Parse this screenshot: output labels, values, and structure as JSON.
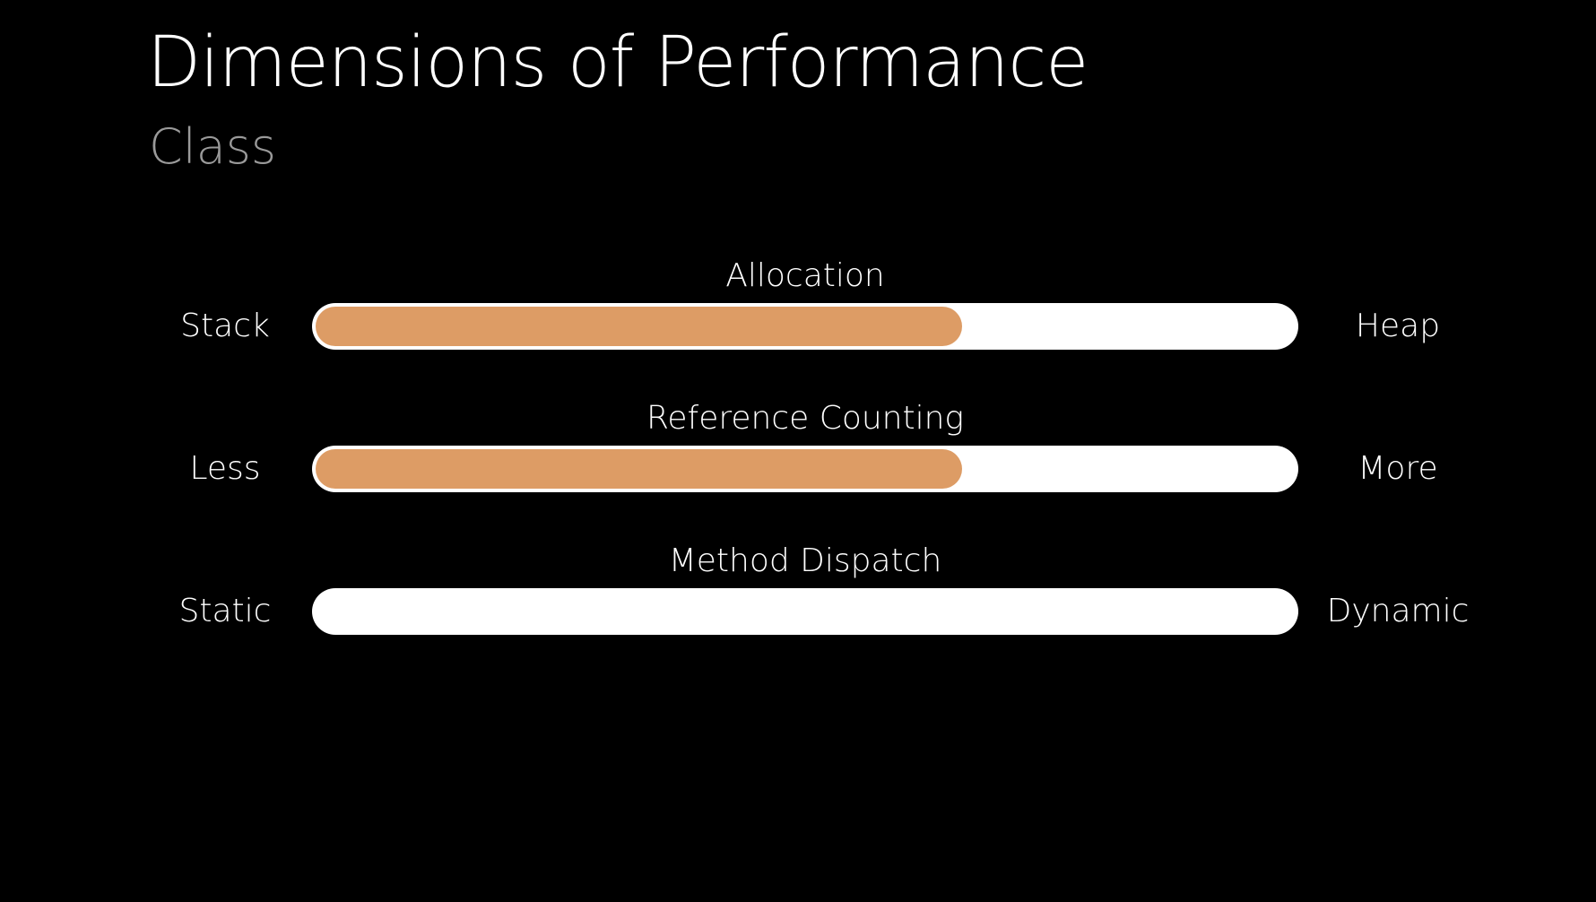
{
  "slide": {
    "title": "Dimensions of Performance",
    "subtitle": "Class"
  },
  "colors": {
    "background": "#000000",
    "track": "#ffffff",
    "fill": "#dd9c65",
    "subtitle": "#9a9a9a"
  },
  "rows": [
    {
      "title": "Allocation",
      "left_label": "Stack",
      "right_label": "Heap",
      "level": 0.66
    },
    {
      "title": "Reference Counting",
      "left_label": "Less",
      "right_label": "More",
      "level": 0.66
    },
    {
      "title": "Method Dispatch",
      "left_label": "Static",
      "right_label": "Dynamic",
      "level": 0
    }
  ]
}
